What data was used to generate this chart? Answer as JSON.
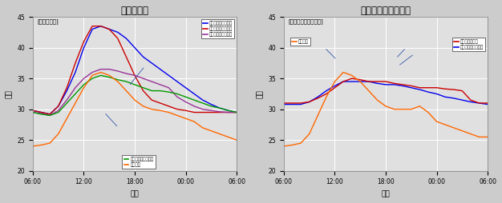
{
  "chart1_title": "屋根裏温度",
  "chart2_title": "階段室天井付近温度",
  "chart1_ylabel_box": "[屋根裏温度]",
  "chart2_ylabel_box": "[階段室天井付近温度]",
  "ylabel": "温度",
  "xlabel": "時間",
  "x_ticks": [
    "06:00",
    "12:00",
    "18:00",
    "00:00",
    "06:00"
  ],
  "ylim": [
    20,
    45
  ],
  "yticks": [
    20,
    25,
    30,
    35,
    40,
    45
  ],
  "background_color": "#cccccc",
  "plot_bg_color": "#e0e0e0",
  "chart1_lines": {
    "blue": [
      29.8,
      29.5,
      29.2,
      30.5,
      33.0,
      36.0,
      40.0,
      43.0,
      43.5,
      43.0,
      42.5,
      41.5,
      40.0,
      38.5,
      37.5,
      36.5,
      35.5,
      34.5,
      33.5,
      32.5,
      31.5,
      30.8,
      30.2,
      29.8,
      29.5
    ],
    "red": [
      29.8,
      29.5,
      29.2,
      30.5,
      33.5,
      37.5,
      41.0,
      43.5,
      43.5,
      43.0,
      41.5,
      38.5,
      35.5,
      33.0,
      31.5,
      31.0,
      30.5,
      30.0,
      29.8,
      29.5,
      29.5,
      29.5,
      29.5,
      29.5,
      29.5
    ],
    "purple": [
      29.5,
      29.3,
      29.0,
      29.8,
      31.5,
      33.5,
      35.0,
      36.0,
      36.5,
      36.5,
      36.2,
      35.8,
      35.5,
      35.0,
      34.5,
      34.0,
      33.5,
      32.0,
      31.2,
      30.5,
      30.0,
      29.8,
      29.6,
      29.5,
      29.5
    ],
    "green": [
      29.5,
      29.2,
      29.0,
      29.5,
      31.0,
      32.5,
      34.0,
      35.0,
      35.5,
      35.2,
      34.8,
      34.5,
      34.0,
      33.5,
      33.0,
      33.0,
      32.8,
      32.5,
      32.0,
      31.5,
      31.0,
      30.5,
      30.2,
      29.8,
      29.5
    ],
    "orange": [
      24.0,
      24.2,
      24.5,
      26.0,
      28.5,
      31.0,
      33.5,
      35.5,
      36.0,
      35.5,
      34.5,
      33.0,
      31.5,
      30.5,
      30.0,
      29.8,
      29.5,
      29.0,
      28.5,
      28.0,
      27.0,
      26.5,
      26.0,
      25.5,
      25.0
    ]
  },
  "chart2_lines": {
    "blue": [
      30.8,
      30.8,
      30.8,
      31.2,
      32.0,
      33.0,
      33.8,
      34.5,
      34.5,
      34.5,
      34.5,
      34.2,
      34.0,
      34.0,
      33.8,
      33.5,
      33.2,
      32.8,
      32.5,
      32.0,
      31.8,
      31.5,
      31.2,
      31.0,
      30.8
    ],
    "red": [
      31.0,
      31.0,
      31.0,
      31.2,
      31.8,
      32.5,
      33.5,
      34.5,
      35.0,
      34.8,
      34.5,
      34.5,
      34.5,
      34.2,
      34.0,
      33.8,
      33.5,
      33.5,
      33.5,
      33.3,
      33.2,
      33.0,
      31.5,
      31.0,
      31.0
    ],
    "orange": [
      24.0,
      24.2,
      24.5,
      26.0,
      29.0,
      32.0,
      34.5,
      36.0,
      35.5,
      34.5,
      33.0,
      31.5,
      30.5,
      30.0,
      30.0,
      30.0,
      30.5,
      29.5,
      28.0,
      27.5,
      27.0,
      26.5,
      26.0,
      25.5,
      25.5
    ]
  },
  "chart1_legend_top": [
    {
      "label": "換気有　屋根裏上部",
      "color": "blue"
    },
    {
      "label": "換気無　屋根裏上部",
      "color": "red"
    },
    {
      "label": "換気無　屋根裏下部",
      "color": "purple"
    }
  ],
  "chart1_legend_bot": [
    {
      "label": "換気有　屋根裏下部",
      "color": "green"
    },
    {
      "label": "外気温度",
      "color": "orange"
    }
  ],
  "chart2_legend_left": [
    {
      "label": "外気温度",
      "color": "orange"
    }
  ],
  "chart2_legend_right": [
    {
      "label": "換気無　階段室",
      "color": "red"
    },
    {
      "label": "換気有　階段室天井",
      "color": "blue"
    }
  ],
  "color_map": {
    "blue": "#0000ee",
    "red": "#cc0000",
    "purple": "#993399",
    "green": "#009900",
    "orange": "#ff6600"
  }
}
